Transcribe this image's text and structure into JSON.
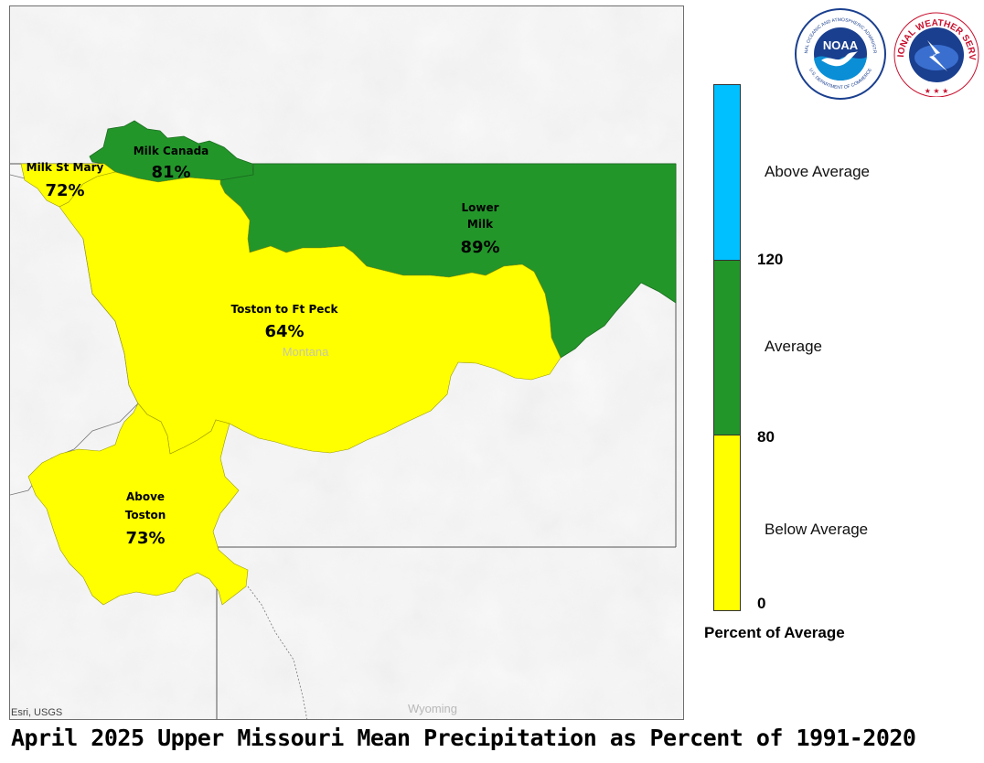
{
  "caption": "April 2025 Upper Missouri Mean Precipitation as Percent of 1991-2020",
  "attribution": "Esri, USGS",
  "state_labels": {
    "montana": "Montana",
    "wyoming": "Wyoming"
  },
  "basins": [
    {
      "name": "Milk St Mary",
      "value": "72%",
      "category": "Below Average"
    },
    {
      "name": "Milk Canada",
      "value": "81%",
      "category": "Average"
    },
    {
      "name_lines": [
        "Lower",
        "Milk"
      ],
      "value": "89%",
      "category": "Average"
    },
    {
      "name": "Toston to Ft Peck",
      "value": "64%",
      "category": "Below Average"
    },
    {
      "name_lines": [
        "Above",
        "Toston"
      ],
      "value": "73%",
      "category": "Below Average"
    }
  ],
  "legend": {
    "title": "Percent of Average",
    "categories": [
      {
        "label": "Above Average",
        "color": "#00c0ff"
      },
      {
        "label": "Average",
        "color": "#23962a"
      },
      {
        "label": "Below Average",
        "color": "#ffff00"
      }
    ],
    "ticks": [
      "120",
      "80",
      "0"
    ]
  },
  "logos": {
    "noaa": {
      "center_text": "NOAA",
      "ring_top": "NATIONAL OCEANIC AND ATMOSPHERIC ADMINISTRATION",
      "ring_bottom": "U.S. DEPARTMENT OF COMMERCE"
    },
    "nws": {
      "ring_text": "NATIONAL WEATHER SERVICE"
    }
  },
  "colors": {
    "below": "#ffff00",
    "average": "#23962a",
    "above": "#00c0ff"
  }
}
